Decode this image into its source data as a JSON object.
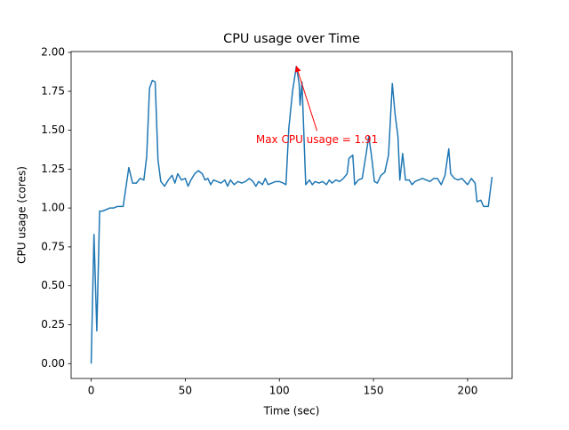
{
  "chart_data": {
    "type": "line",
    "title": "CPU usage over Time",
    "x_label": "Time (sec)",
    "y_label": "CPU usage (cores)",
    "series": [
      {
        "color": "#1f77b4",
        "x": [
          0,
          1.5,
          3,
          4.5,
          6,
          8,
          10,
          12,
          14,
          17,
          20,
          22,
          24,
          26,
          28,
          29.5,
          31,
          32.5,
          34,
          35.5,
          37,
          39,
          41,
          43,
          44.5,
          46,
          48,
          50,
          51.5,
          53,
          55,
          57,
          59,
          60.5,
          62,
          63.5,
          65,
          67,
          69,
          71,
          72.5,
          74,
          76,
          78,
          80,
          82,
          84,
          86,
          87.5,
          89,
          91,
          92.5,
          94,
          96,
          98,
          100,
          102,
          103.5,
          105,
          107,
          109,
          110.5,
          111,
          112,
          114,
          116,
          117.5,
          119,
          121,
          123,
          125,
          126.5,
          128,
          130,
          132,
          134,
          136,
          137,
          139,
          140,
          142,
          144,
          146,
          147.5,
          149,
          150.5,
          152,
          154,
          156,
          158,
          160,
          161.5,
          163,
          164,
          165.5,
          167,
          169,
          170.5,
          172,
          174,
          176,
          178,
          180,
          182,
          184,
          186,
          188,
          190,
          191,
          193,
          195,
          197,
          198.5,
          200,
          202,
          204,
          205,
          207,
          208.5,
          211,
          213
        ],
        "values": [
          0,
          0.83,
          0.21,
          0.98,
          0.98,
          0.99,
          1.0,
          1.0,
          1.01,
          1.01,
          1.26,
          1.16,
          1.16,
          1.19,
          1.18,
          1.33,
          1.77,
          1.82,
          1.81,
          1.31,
          1.17,
          1.14,
          1.18,
          1.21,
          1.16,
          1.22,
          1.18,
          1.19,
          1.14,
          1.18,
          1.22,
          1.24,
          1.22,
          1.18,
          1.19,
          1.15,
          1.18,
          1.17,
          1.16,
          1.18,
          1.14,
          1.18,
          1.15,
          1.17,
          1.16,
          1.17,
          1.19,
          1.17,
          1.14,
          1.17,
          1.15,
          1.19,
          1.15,
          1.16,
          1.17,
          1.17,
          1.16,
          1.15,
          1.51,
          1.75,
          1.91,
          1.8,
          1.66,
          1.81,
          1.15,
          1.18,
          1.15,
          1.17,
          1.16,
          1.17,
          1.15,
          1.18,
          1.16,
          1.18,
          1.17,
          1.19,
          1.22,
          1.32,
          1.34,
          1.15,
          1.18,
          1.19,
          1.34,
          1.46,
          1.33,
          1.17,
          1.16,
          1.21,
          1.23,
          1.34,
          1.8,
          1.6,
          1.46,
          1.18,
          1.35,
          1.18,
          1.18,
          1.15,
          1.17,
          1.18,
          1.19,
          1.18,
          1.17,
          1.19,
          1.19,
          1.15,
          1.21,
          1.38,
          1.22,
          1.19,
          1.18,
          1.19,
          1.17,
          1.15,
          1.19,
          1.16,
          1.04,
          1.05,
          1.01,
          1.01,
          1.2
        ]
      }
    ],
    "xlim": [
      -10.65,
      223.65
    ],
    "xticks": [
      0,
      50,
      100,
      150,
      200
    ],
    "ylim": [
      -0.0955,
      2.0055
    ],
    "yticks": [
      {
        "value": 0,
        "label": "0.00"
      },
      {
        "value": 0.25,
        "label": "0.25"
      },
      {
        "value": 0.5,
        "label": "0.50"
      },
      {
        "value": 0.75,
        "label": "0.75"
      },
      {
        "value": 1.0,
        "label": "1.00"
      },
      {
        "value": 1.25,
        "label": "1.25"
      },
      {
        "value": 1.5,
        "label": "1.50"
      },
      {
        "value": 1.75,
        "label": "1.75"
      },
      {
        "value": 2.0,
        "label": "2.00"
      }
    ],
    "grid": false,
    "annotation": {
      "text": "Max CPU usage = 1.91",
      "xy": [
        109,
        1.91
      ],
      "xytext": [
        120,
        1.45
      ],
      "color": "#ff0000"
    }
  }
}
